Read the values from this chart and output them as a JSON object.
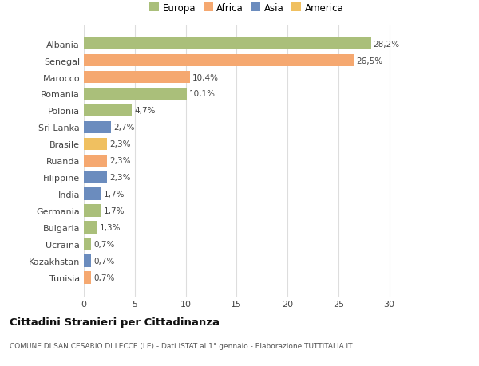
{
  "categories": [
    "Tunisia",
    "Kazakhstan",
    "Ucraina",
    "Bulgaria",
    "Germania",
    "India",
    "Filippine",
    "Ruanda",
    "Brasile",
    "Sri Lanka",
    "Polonia",
    "Romania",
    "Marocco",
    "Senegal",
    "Albania"
  ],
  "values": [
    0.7,
    0.7,
    0.7,
    1.3,
    1.7,
    1.7,
    2.3,
    2.3,
    2.3,
    2.7,
    4.7,
    10.1,
    10.4,
    26.5,
    28.2
  ],
  "labels": [
    "0,7%",
    "0,7%",
    "0,7%",
    "1,3%",
    "1,7%",
    "1,7%",
    "2,3%",
    "2,3%",
    "2,3%",
    "2,7%",
    "4,7%",
    "10,1%",
    "10,4%",
    "26,5%",
    "28,2%"
  ],
  "colors": [
    "#f5a870",
    "#6b8cbe",
    "#aabf7a",
    "#aabf7a",
    "#aabf7a",
    "#6b8cbe",
    "#6b8cbe",
    "#f5a870",
    "#f0c060",
    "#6b8cbe",
    "#aabf7a",
    "#aabf7a",
    "#f5a870",
    "#f5a870",
    "#aabf7a"
  ],
  "continent_colors": {
    "Europa": "#aabf7a",
    "Africa": "#f5a870",
    "Asia": "#6b8cbe",
    "America": "#f0c060"
  },
  "legend_labels": [
    "Europa",
    "Africa",
    "Asia",
    "America"
  ],
  "title": "Cittadini Stranieri per Cittadinanza",
  "subtitle": "COMUNE DI SAN CESARIO DI LECCE (LE) - Dati ISTAT al 1° gennaio - Elaborazione TUTTITALIA.IT",
  "xlim": [
    0,
    32
  ],
  "xticks": [
    0,
    5,
    10,
    15,
    20,
    25,
    30
  ],
  "background_color": "#ffffff",
  "grid_color": "#dddddd"
}
